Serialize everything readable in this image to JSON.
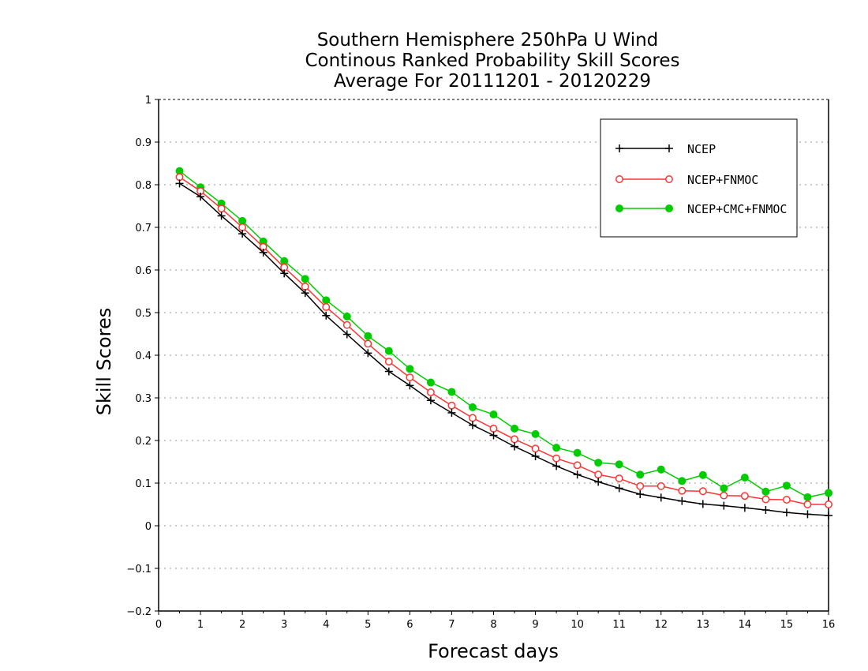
{
  "chart_data": {
    "type": "line",
    "title": [
      "Southern Hemisphere 250hPa U Wind",
      "Continous Ranked Probability Skill Scores",
      "Average For 20111201 - 20120229"
    ],
    "xlabel": "Forecast days",
    "ylabel": "Skill Scores",
    "xlim": [
      0,
      16
    ],
    "ylim": [
      -0.2,
      1
    ],
    "xticks": [
      "0",
      "1",
      "2",
      "3",
      "4",
      "5",
      "6",
      "7",
      "8",
      "9",
      "10",
      "11",
      "12",
      "13",
      "14",
      "15",
      "16"
    ],
    "yticks": [
      "−0.2",
      "−0.1",
      "0",
      "0.1",
      "0.2",
      "0.3",
      "0.4",
      "0.5",
      "0.6",
      "0.7",
      "0.8",
      "0.9",
      "1"
    ],
    "grid": "horizontal-dotted",
    "legend_position": "top-right",
    "x": [
      0.5,
      1,
      1.5,
      2,
      2.5,
      3,
      3.5,
      4,
      4.5,
      5,
      5.5,
      6,
      6.5,
      7,
      7.5,
      8,
      8.5,
      9,
      9.5,
      10,
      10.5,
      11,
      11.5,
      12,
      12.5,
      13,
      13.5,
      14,
      14.5,
      15,
      15.5,
      16
    ],
    "series": [
      {
        "name": "NCEP",
        "color": "#000000",
        "marker": "plus",
        "values": [
          0.803,
          0.772,
          0.727,
          0.685,
          0.641,
          0.592,
          0.546,
          0.493,
          0.449,
          0.405,
          0.362,
          0.329,
          0.294,
          0.265,
          0.236,
          0.212,
          0.186,
          0.163,
          0.14,
          0.12,
          0.103,
          0.088,
          0.074,
          0.066,
          0.058,
          0.051,
          0.047,
          0.042,
          0.037,
          0.031,
          0.027,
          0.024
        ]
      },
      {
        "name": "NCEP+FNMOC",
        "color": "#ff3333",
        "marker": "open-circle",
        "values": [
          0.818,
          0.785,
          0.744,
          0.7,
          0.654,
          0.606,
          0.561,
          0.513,
          0.471,
          0.427,
          0.385,
          0.348,
          0.313,
          0.282,
          0.253,
          0.228,
          0.203,
          0.181,
          0.158,
          0.142,
          0.12,
          0.111,
          0.093,
          0.093,
          0.082,
          0.081,
          0.071,
          0.07,
          0.062,
          0.061,
          0.05,
          0.05
        ]
      },
      {
        "name": "NCEP+CMC+FNMOC",
        "color": "#00cc00",
        "marker": "filled-circle",
        "values": [
          0.832,
          0.794,
          0.756,
          0.715,
          0.667,
          0.621,
          0.579,
          0.529,
          0.491,
          0.445,
          0.41,
          0.368,
          0.336,
          0.314,
          0.278,
          0.261,
          0.228,
          0.215,
          0.183,
          0.171,
          0.148,
          0.144,
          0.12,
          0.132,
          0.105,
          0.119,
          0.088,
          0.113,
          0.08,
          0.094,
          0.067,
          0.077
        ]
      }
    ]
  }
}
